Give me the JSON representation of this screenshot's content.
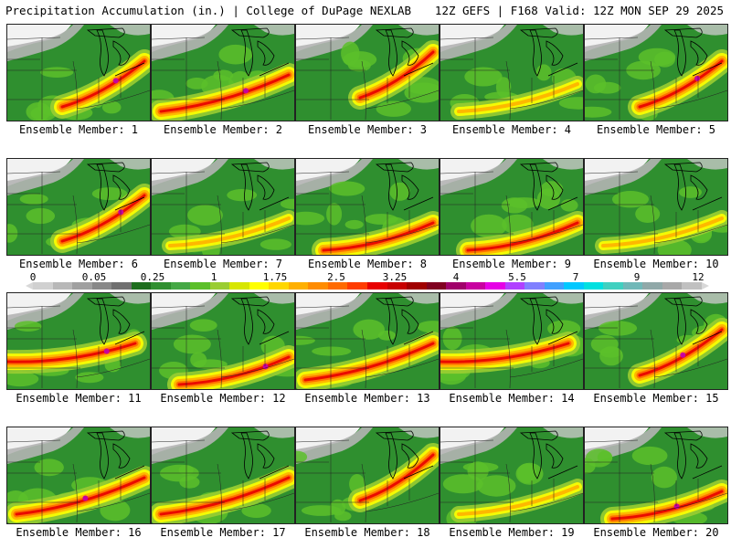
{
  "header": {
    "title_left": "Precipitation Accumulation (in.) | College of DuPage NEXLAB",
    "title_right": "12Z GEFS | F168 Valid: 12Z MON SEP 29 2025"
  },
  "panels": [
    {
      "label": "Ensemble Member: 1",
      "heavy": "east-ohio"
    },
    {
      "label": "Ensemble Member: 2",
      "heavy": "central-band"
    },
    {
      "label": "Ensemble Member: 3",
      "heavy": "northeast"
    },
    {
      "label": "Ensemble Member: 4",
      "heavy": "light"
    },
    {
      "label": "Ensemble Member: 5",
      "heavy": "east"
    },
    {
      "label": "Ensemble Member: 6",
      "heavy": "east"
    },
    {
      "label": "Ensemble Member: 7",
      "heavy": "light"
    },
    {
      "label": "Ensemble Member: 8",
      "heavy": "southern-band"
    },
    {
      "label": "Ensemble Member: 9",
      "heavy": "southern-band"
    },
    {
      "label": "Ensemble Member: 10",
      "heavy": "light"
    },
    {
      "label": "Ensemble Member: 11",
      "heavy": "west-band"
    },
    {
      "label": "Ensemble Member: 12",
      "heavy": "southern-band"
    },
    {
      "label": "Ensemble Member: 13",
      "heavy": "central-band"
    },
    {
      "label": "Ensemble Member: 14",
      "heavy": "west-band"
    },
    {
      "label": "Ensemble Member: 15",
      "heavy": "east"
    },
    {
      "label": "Ensemble Member: 16",
      "heavy": "central-band"
    },
    {
      "label": "Ensemble Member: 17",
      "heavy": "central-band"
    },
    {
      "label": "Ensemble Member: 18",
      "heavy": "northeast"
    },
    {
      "label": "Ensemble Member: 19",
      "heavy": "light"
    },
    {
      "label": "Ensemble Member: 20",
      "heavy": "southern-band"
    }
  ],
  "colorbar": {
    "tick_labels": [
      "0",
      "0.05",
      "0.25",
      "1",
      "1.75",
      "2.5",
      "3.25",
      "4",
      "5.5",
      "7",
      "9",
      "12"
    ],
    "colors": [
      "#d0d0d0",
      "#b8b8b8",
      "#a0a0a0",
      "#888888",
      "#707070",
      "#1e6e1e",
      "#2f8f2f",
      "#45a845",
      "#5cbf2a",
      "#9acd32",
      "#d7e600",
      "#ffff00",
      "#ffd700",
      "#ffb000",
      "#ff8c00",
      "#ff6a00",
      "#ff3c00",
      "#e80000",
      "#c80000",
      "#a00000",
      "#800020",
      "#a0006a",
      "#c800a0",
      "#e600e6",
      "#b040ff",
      "#8080ff",
      "#40a0ff",
      "#00c8ff",
      "#00e0e0",
      "#40d0c0",
      "#70b8b8",
      "#90a8a8",
      "#a8a8a8",
      "#c0c0c0"
    ]
  }
}
